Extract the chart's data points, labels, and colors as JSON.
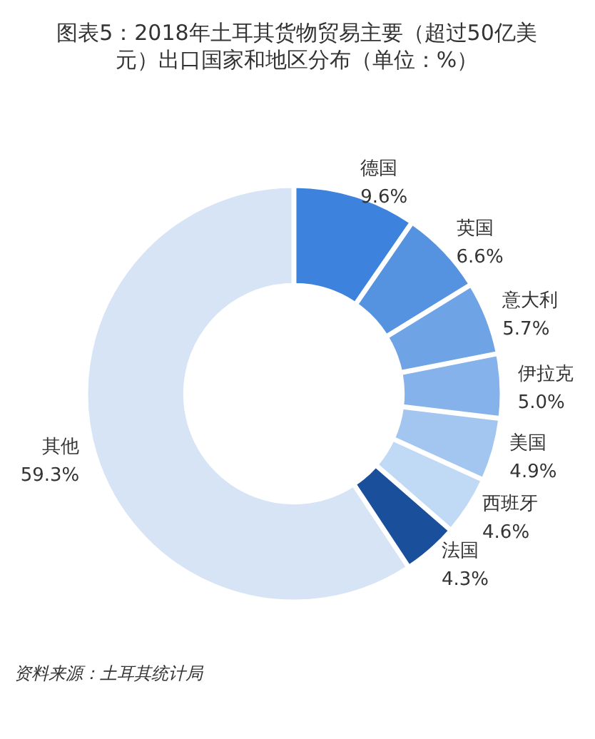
{
  "chart_data": {
    "type": "donut",
    "title": "图表5：2018年土耳其货物贸易主要（超过50亿美元）出口国家和地区分布（单位：%）",
    "categories": [
      "德国",
      "英国",
      "意大利",
      "伊拉克",
      "美国",
      "西班牙",
      "法国",
      "其他"
    ],
    "values": [
      9.6,
      6.6,
      5.7,
      5.0,
      4.9,
      4.6,
      4.3,
      59.3
    ],
    "value_labels": [
      "9.6%",
      "6.6%",
      "5.7%",
      "5.0%",
      "4.9%",
      "4.6%",
      "4.3%",
      "59.3%"
    ],
    "colors": [
      "#3d82dc",
      "#5592e0",
      "#6ea3e6",
      "#85b2ea",
      "#a3c6f0",
      "#c0d9f5",
      "#1a4f9c",
      "#d6e4f5"
    ],
    "annotations": [
      "资料来源：土耳其统计局"
    ]
  }
}
